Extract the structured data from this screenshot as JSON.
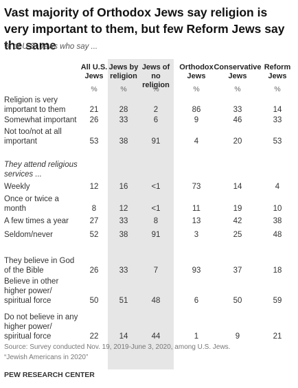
{
  "header": {
    "title": "Vast majority of Orthodox Jews say religion is very important to them, but few Reform Jews say the same",
    "subtitle": "% of U.S. Jews who say ..."
  },
  "table": {
    "columns": [
      "All U.S. Jews",
      "Jews by religion",
      "Jews of no religion",
      "Orthodox Jews",
      "Conservative Jews",
      "Reform Jews"
    ],
    "units": [
      "%",
      "%",
      "%",
      "%",
      "%",
      "%"
    ],
    "rows": [
      {
        "label": "Religion is very important to them",
        "values": [
          21,
          28,
          2,
          86,
          33,
          14
        ]
      },
      {
        "label": "Somewhat important",
        "values": [
          26,
          33,
          6,
          9,
          46,
          33
        ]
      },
      {
        "label": "Not too/not at all important",
        "values": [
          53,
          38,
          91,
          4,
          20,
          53
        ]
      },
      {
        "section": "They attend religious services ..."
      },
      {
        "label": "Weekly",
        "values": [
          12,
          16,
          "<1",
          73,
          14,
          4
        ]
      },
      {
        "label": "Once or twice a month",
        "values": [
          8,
          12,
          "<1",
          11,
          19,
          10
        ]
      },
      {
        "label": "A few times a year",
        "values": [
          27,
          33,
          8,
          13,
          42,
          38
        ]
      },
      {
        "label": "Seldom/never",
        "values": [
          52,
          38,
          91,
          3,
          25,
          48
        ]
      },
      {
        "label": "They believe in God of the Bible",
        "values": [
          26,
          33,
          7,
          93,
          37,
          18
        ]
      },
      {
        "label": "Believe in other higher power/ spiritual force",
        "values": [
          50,
          51,
          48,
          6,
          50,
          59
        ]
      },
      {
        "label": "Do not believe in any higher power/ spiritual force",
        "values": [
          22,
          14,
          44,
          1,
          9,
          21
        ]
      }
    ]
  },
  "footer": {
    "source": "Source: Survey conducted Nov. 19, 2019-June 3, 2020, among U.S. Jews.",
    "note": "“Jewish Americans in 2020”",
    "brand": "PEW RESEARCH CENTER"
  }
}
